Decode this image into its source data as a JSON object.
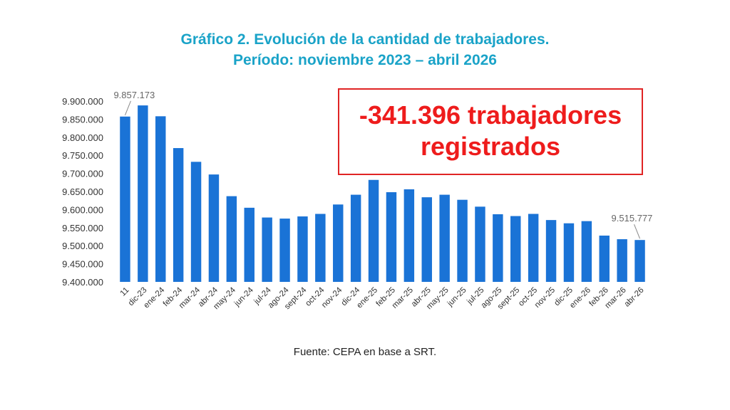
{
  "title_line1": "Gráfico 2. Evolución de la cantidad de trabajadores.",
  "title_line2": "Período: noviembre 2023 – abril 2026",
  "callout": {
    "line1": "-341.396 trabajadores",
    "line2": "registrados"
  },
  "source": "Fuente: CEPA en base a SRT.",
  "colors": {
    "bar": "#1a73d6",
    "title": "#1aa3c8",
    "callout": "#ee1c1c"
  },
  "chart_data": {
    "type": "bar",
    "title": "Gráfico 2. Evolución de la cantidad de trabajadores.",
    "subtitle": "Período: noviembre 2023 – abril 2026",
    "categories": [
      "11",
      "dic-23",
      "ene-24",
      "feb-24",
      "mar-24",
      "abr-24",
      "may-24",
      "jun-24",
      "jul-24",
      "ago-24",
      "sept-24",
      "oct-24",
      "nov-24",
      "dic-24",
      "ene-25",
      "feb-25",
      "mar-25",
      "abr-25",
      "may-25",
      "jun-25",
      "jul-25",
      "ago-25",
      "sept-25",
      "oct-25",
      "nov-25",
      "dic-25",
      "ene-26",
      "feb-26",
      "mar-26",
      "abr-26"
    ],
    "values": [
      9857173,
      9888000,
      9858000,
      9770000,
      9732000,
      9697000,
      9637000,
      9605000,
      9578000,
      9575000,
      9581000,
      9588000,
      9614000,
      9641000,
      9682000,
      9648000,
      9656000,
      9634000,
      9641000,
      9627000,
      9608000,
      9587000,
      9582000,
      9588000,
      9571000,
      9562000,
      9568000,
      9528000,
      9518000,
      9515777
    ],
    "ylim": [
      9400000,
      9900000
    ],
    "yticks": [
      "9.400.000",
      "9.450.000",
      "9.500.000",
      "9.550.000",
      "9.600.000",
      "9.650.000",
      "9.700.000",
      "9.750.000",
      "9.800.000",
      "9.850.000",
      "9.900.000"
    ],
    "data_labels": [
      {
        "index": 0,
        "text": "9.857.173"
      },
      {
        "index": 29,
        "text": "9.515.777"
      }
    ],
    "xlabel": "",
    "ylabel": "",
    "grid": false
  }
}
